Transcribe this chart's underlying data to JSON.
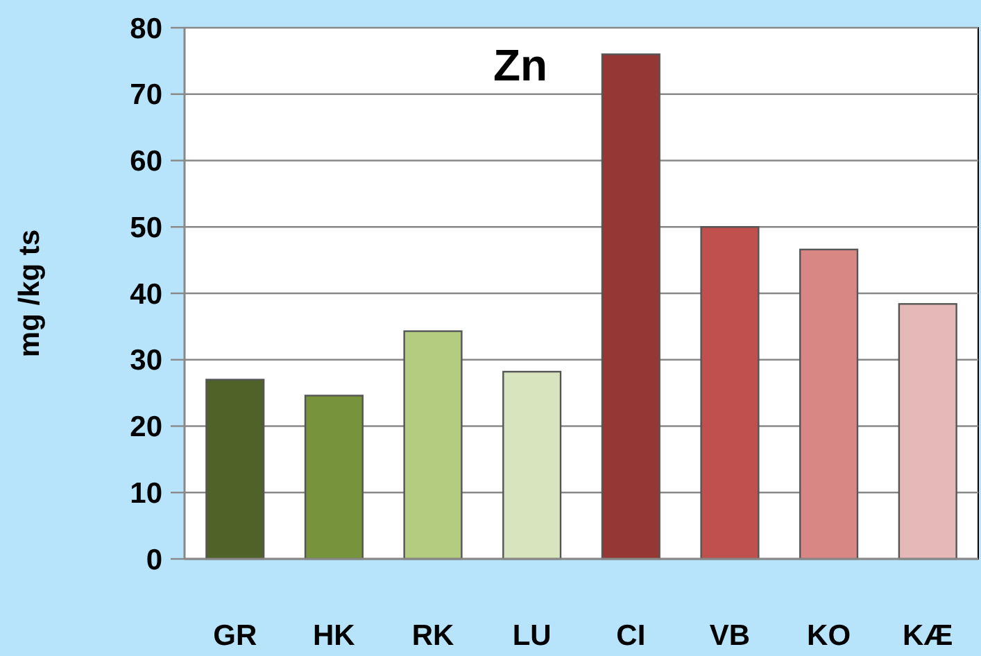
{
  "chart_data": {
    "type": "bar",
    "title": "Zn",
    "ylabel": "mg /kg ts",
    "categories": [
      "GR",
      "HK",
      "RK",
      "LU",
      "CI",
      "VB",
      "KO",
      "KÆ"
    ],
    "values": [
      27,
      24.6,
      34.3,
      28.2,
      76,
      50,
      46.6,
      38.4
    ],
    "colors": [
      "#4f6228",
      "#77933c",
      "#b3cc80",
      "#d7e4bd",
      "#953735",
      "#c0504d",
      "#d98785",
      "#e6b9b8"
    ],
    "ylim": [
      0,
      80
    ],
    "yticks": [
      0,
      10,
      20,
      30,
      40,
      50,
      60,
      70,
      80
    ],
    "grid": "y"
  }
}
